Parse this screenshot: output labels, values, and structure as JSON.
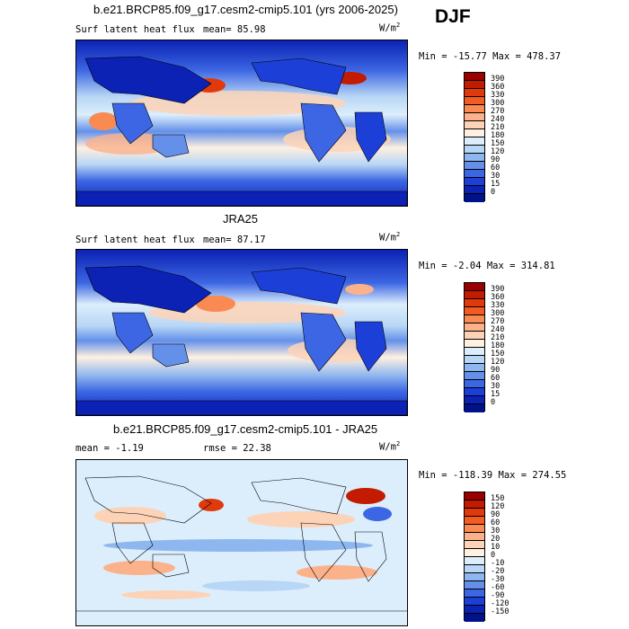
{
  "season": "DJF",
  "panels": [
    {
      "title": "b.e21.BRCP85.f09_g17.cesm2-cmip5.101 (yrs 2006-2025)",
      "variable": "Surf latent heat flux",
      "stats_text": "mean=  85.98",
      "units_base": "W/m",
      "units_exp": "2",
      "minmax": "Min = -15.77 Max = 478.37",
      "levels": [
        "390",
        "360",
        "330",
        "300",
        "270",
        "240",
        "210",
        "180",
        "150",
        "120",
        "90",
        "60",
        "30",
        "15",
        "0"
      ],
      "colors": [
        "#9a0000",
        "#c31b00",
        "#e03a0c",
        "#f25c22",
        "#f98a52",
        "#fbb28a",
        "#fdd3b7",
        "#fff0e1",
        "#dceefc",
        "#b8d6f5",
        "#8fb7ef",
        "#6490ea",
        "#3c66e3",
        "#1c3fd7",
        "#0b22b4",
        "#00128a"
      ]
    },
    {
      "title": "JRA25",
      "variable": "Surf latent heat flux",
      "stats_text": "mean=  87.17",
      "units_base": "W/m",
      "units_exp": "2",
      "minmax": "Min =  -2.04 Max = 314.81",
      "levels": [
        "390",
        "360",
        "330",
        "300",
        "270",
        "240",
        "210",
        "180",
        "150",
        "120",
        "90",
        "60",
        "30",
        "15",
        "0"
      ],
      "colors": [
        "#9a0000",
        "#c31b00",
        "#e03a0c",
        "#f25c22",
        "#f98a52",
        "#fbb28a",
        "#fdd3b7",
        "#fff0e1",
        "#dceefc",
        "#b8d6f5",
        "#8fb7ef",
        "#6490ea",
        "#3c66e3",
        "#1c3fd7",
        "#0b22b4",
        "#00128a"
      ]
    },
    {
      "title": "b.e21.BRCP85.f09_g17.cesm2-cmip5.101 - JRA25",
      "stats_left": "mean =  -1.19",
      "stats_right": "rmse =  22.38",
      "units_base": "W/m",
      "units_exp": "2",
      "minmax": "Min = -118.39 Max = 274.55",
      "levels": [
        "150",
        "120",
        "90",
        "60",
        "30",
        "20",
        "10",
        "0",
        "-10",
        "-20",
        "-30",
        "-60",
        "-90",
        "-120",
        "-150"
      ],
      "colors": [
        "#9a0000",
        "#c31b00",
        "#e03a0c",
        "#f25c22",
        "#f98a52",
        "#fbb28a",
        "#fdd3b7",
        "#fff0e1",
        "#dceefc",
        "#b8d6f5",
        "#8fb7ef",
        "#6490ea",
        "#3c66e3",
        "#1c3fd7",
        "#0b22b4",
        "#00128a"
      ]
    }
  ]
}
